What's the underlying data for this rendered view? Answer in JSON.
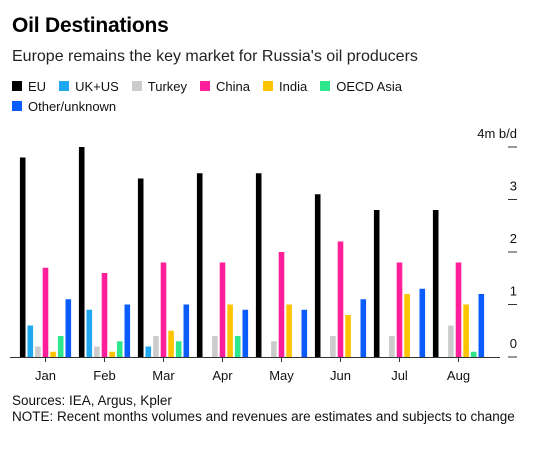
{
  "title": "Oil Destinations",
  "subtitle": "Europe remains the key market for Russia's oil producers",
  "footer": {
    "sources": "Sources: IEA, Argus, Kpler",
    "note": "NOTE: Recent months volumes and revenues are estimates and subjects to change"
  },
  "chart_data": {
    "type": "bar",
    "unit_label": "4m b/d",
    "categories": [
      "Jan",
      "Feb",
      "Mar",
      "Apr",
      "May",
      "Jun",
      "Jul",
      "Aug"
    ],
    "ylim": [
      0,
      4
    ],
    "yticks": [
      {
        "value": 0,
        "label": "0"
      },
      {
        "value": 1,
        "label": "1"
      },
      {
        "value": 2,
        "label": "2"
      },
      {
        "value": 3,
        "label": "3"
      },
      {
        "value": 4,
        "label": "4m b/d"
      }
    ],
    "legend_position": "top",
    "series": [
      {
        "name": "EU",
        "color": "#000000",
        "values": [
          3.8,
          4.0,
          3.4,
          3.5,
          3.5,
          3.1,
          2.8,
          2.8
        ]
      },
      {
        "name": "UK+US",
        "color": "#1fa8f0",
        "values": [
          0.6,
          0.9,
          0.2,
          0.0,
          0.0,
          0.0,
          0.0,
          0.0
        ]
      },
      {
        "name": "Turkey",
        "color": "#cccccc",
        "values": [
          0.2,
          0.2,
          0.4,
          0.4,
          0.3,
          0.4,
          0.4,
          0.6
        ]
      },
      {
        "name": "China",
        "color": "#ff1f9a",
        "values": [
          1.7,
          1.6,
          1.8,
          1.8,
          2.0,
          2.2,
          1.8,
          1.8
        ]
      },
      {
        "name": "India",
        "color": "#ffc400",
        "values": [
          0.1,
          0.1,
          0.5,
          1.0,
          1.0,
          0.8,
          1.2,
          1.0
        ]
      },
      {
        "name": "OECD Asia",
        "color": "#2ee68c",
        "values": [
          0.4,
          0.3,
          0.3,
          0.4,
          0.0,
          0.0,
          0.0,
          0.1
        ]
      },
      {
        "name": "Other/unknown",
        "color": "#0b5cff",
        "values": [
          1.1,
          1.0,
          1.0,
          0.9,
          0.9,
          1.1,
          1.3,
          1.2
        ]
      }
    ]
  }
}
